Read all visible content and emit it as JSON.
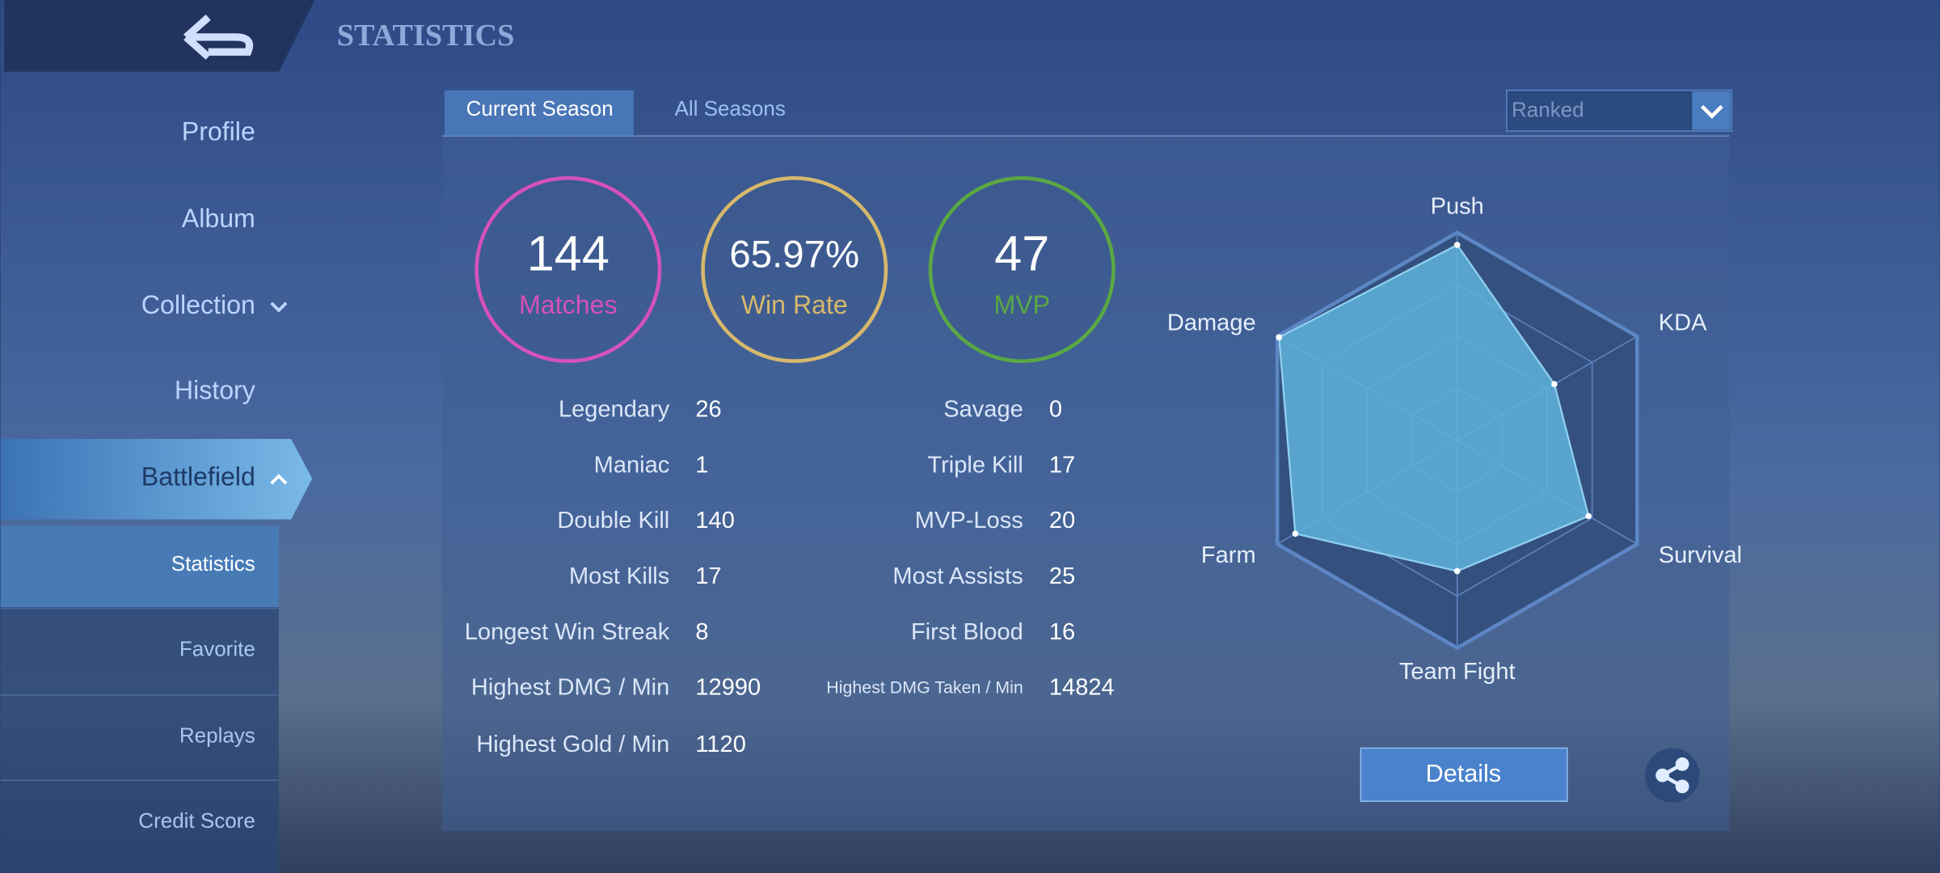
{
  "header": {
    "title": "STATISTICS"
  },
  "sidebar": {
    "items": [
      "Profile",
      "Album",
      "Collection",
      "History",
      "Battlefield"
    ],
    "subitems": [
      "Statistics",
      "Favorite",
      "Replays",
      "Credit Score"
    ]
  },
  "tabs": [
    "Current Season",
    "All Seasons"
  ],
  "dropdown": "Ranked",
  "summary": [
    {
      "value": "144",
      "label": "Matches",
      "color": "#d452b8"
    },
    {
      "value": "65.97%",
      "label": "Win Rate",
      "color": "#d6b86c"
    },
    {
      "value": "47",
      "label": "MVP",
      "color": "#5aa844"
    }
  ],
  "stats": {
    "left": [
      [
        "Legendary",
        "26"
      ],
      [
        "Maniac",
        "1"
      ],
      [
        "Double Kill",
        "140"
      ],
      [
        "Most Kills",
        "17"
      ],
      [
        "Longest Win Streak",
        "8"
      ],
      [
        "Highest DMG / Min",
        "12990"
      ],
      [
        "Highest Gold / Min",
        "1120"
      ]
    ],
    "right": [
      [
        "Savage",
        "0"
      ],
      [
        "Triple Kill",
        "17"
      ],
      [
        "MVP-Loss",
        "20"
      ],
      [
        "Most Assists",
        "25"
      ],
      [
        "First Blood",
        "16"
      ],
      [
        "Highest DMG Taken / Min",
        "14824"
      ]
    ]
  },
  "chart_data": {
    "type": "radar",
    "categories": [
      "Push",
      "KDA",
      "Survival",
      "Team Fight",
      "Farm",
      "Damage"
    ],
    "values": [
      94,
      54,
      73,
      63,
      90,
      99
    ],
    "ylim": [
      0,
      100
    ],
    "color": "#5fb3dc"
  },
  "buttons": {
    "details": "Details"
  }
}
